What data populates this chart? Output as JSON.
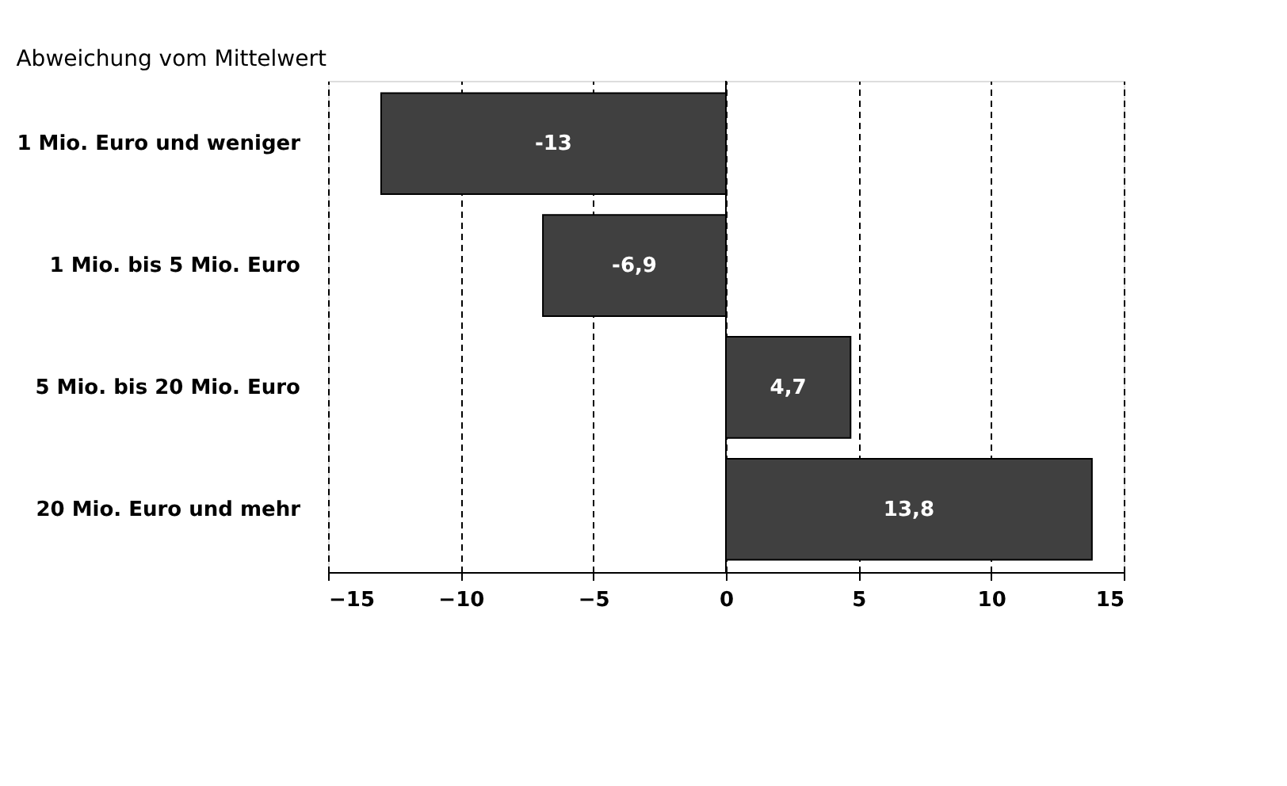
{
  "chart_data": {
    "type": "bar",
    "orientation": "horizontal",
    "title": "Abweichung vom Mittelwert",
    "categories": [
      "1 Mio. Euro und weniger",
      "1 Mio. bis 5 Mio. Euro",
      "5 Mio. bis 20 Mio. Euro",
      "20 Mio. Euro und mehr"
    ],
    "values": [
      -13,
      -6.9,
      4.7,
      13.8
    ],
    "value_labels": [
      "-13",
      "-6,9",
      "4,7",
      "13,8"
    ],
    "color": "#404040",
    "xlim": [
      -15,
      15
    ],
    "xticks": [
      -15,
      -10,
      -5,
      0,
      5,
      10,
      15
    ],
    "grid": "x",
    "line_style": "dashed",
    "ref_lines": [
      {
        "axis": "x",
        "value": 0,
        "line_style": "solid",
        "color": "#000000"
      }
    ]
  }
}
